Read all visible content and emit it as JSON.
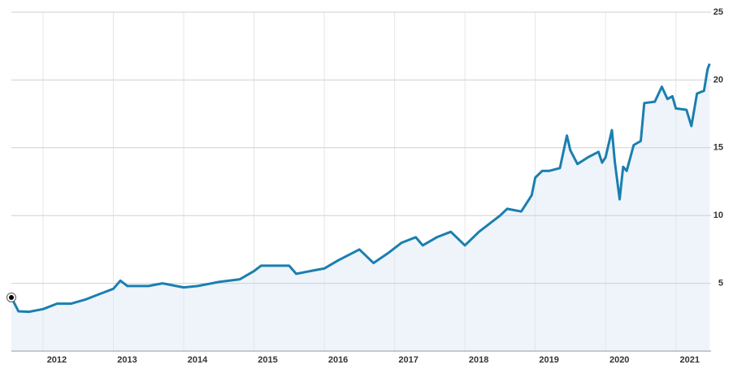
{
  "chart_data": {
    "type": "line",
    "x": [
      2011.55,
      2011.65,
      2011.8,
      2012.0,
      2012.2,
      2012.4,
      2012.6,
      2012.8,
      2013.0,
      2013.1,
      2013.2,
      2013.5,
      2013.7,
      2014.0,
      2014.2,
      2014.5,
      2014.8,
      2015.0,
      2015.1,
      2015.5,
      2015.6,
      2015.9,
      2016.0,
      2016.2,
      2016.5,
      2016.7,
      2016.9,
      2017.1,
      2017.3,
      2017.4,
      2017.6,
      2017.8,
      2018.0,
      2018.2,
      2018.5,
      2018.6,
      2018.8,
      2018.95,
      2019.0,
      2019.1,
      2019.2,
      2019.35,
      2019.45,
      2019.5,
      2019.6,
      2019.75,
      2019.9,
      2019.95,
      2020.0,
      2020.09,
      2020.13,
      2020.2,
      2020.25,
      2020.3,
      2020.4,
      2020.5,
      2020.55,
      2020.7,
      2020.8,
      2020.88,
      2020.95,
      2021.0,
      2021.15,
      2021.22,
      2021.3,
      2021.4,
      2021.45,
      2021.48
    ],
    "series": [
      {
        "color": "#1a7fb0",
        "values": [
          3.96,
          2.94,
          2.9,
          3.1,
          3.5,
          3.5,
          3.8,
          4.2,
          4.6,
          5.2,
          4.8,
          4.8,
          5.0,
          4.7,
          4.8,
          5.1,
          5.3,
          5.9,
          6.3,
          6.3,
          5.7,
          6.0,
          6.1,
          6.7,
          7.5,
          6.5,
          7.2,
          8.0,
          8.4,
          7.8,
          8.4,
          8.8,
          7.8,
          8.8,
          10.0,
          10.5,
          10.3,
          11.5,
          12.8,
          13.3,
          13.3,
          13.5,
          15.9,
          14.8,
          13.8,
          14.3,
          14.7,
          13.9,
          14.3,
          16.3,
          14.0,
          11.2,
          13.6,
          13.3,
          15.2,
          15.5,
          18.3,
          18.4,
          19.5,
          18.6,
          18.8,
          17.9,
          17.8,
          16.6,
          19.0,
          19.2,
          20.8,
          21.2
        ]
      }
    ],
    "xlim": [
      2011.55,
      2021.5
    ],
    "xticks": [
      2012,
      2013,
      2014,
      2015,
      2016,
      2017,
      2018,
      2019,
      2020,
      2021
    ],
    "ylim": [
      0,
      25
    ],
    "yticks": [
      5,
      10,
      15,
      20,
      25
    ],
    "grid": true,
    "area_color": "#eef4fa"
  }
}
